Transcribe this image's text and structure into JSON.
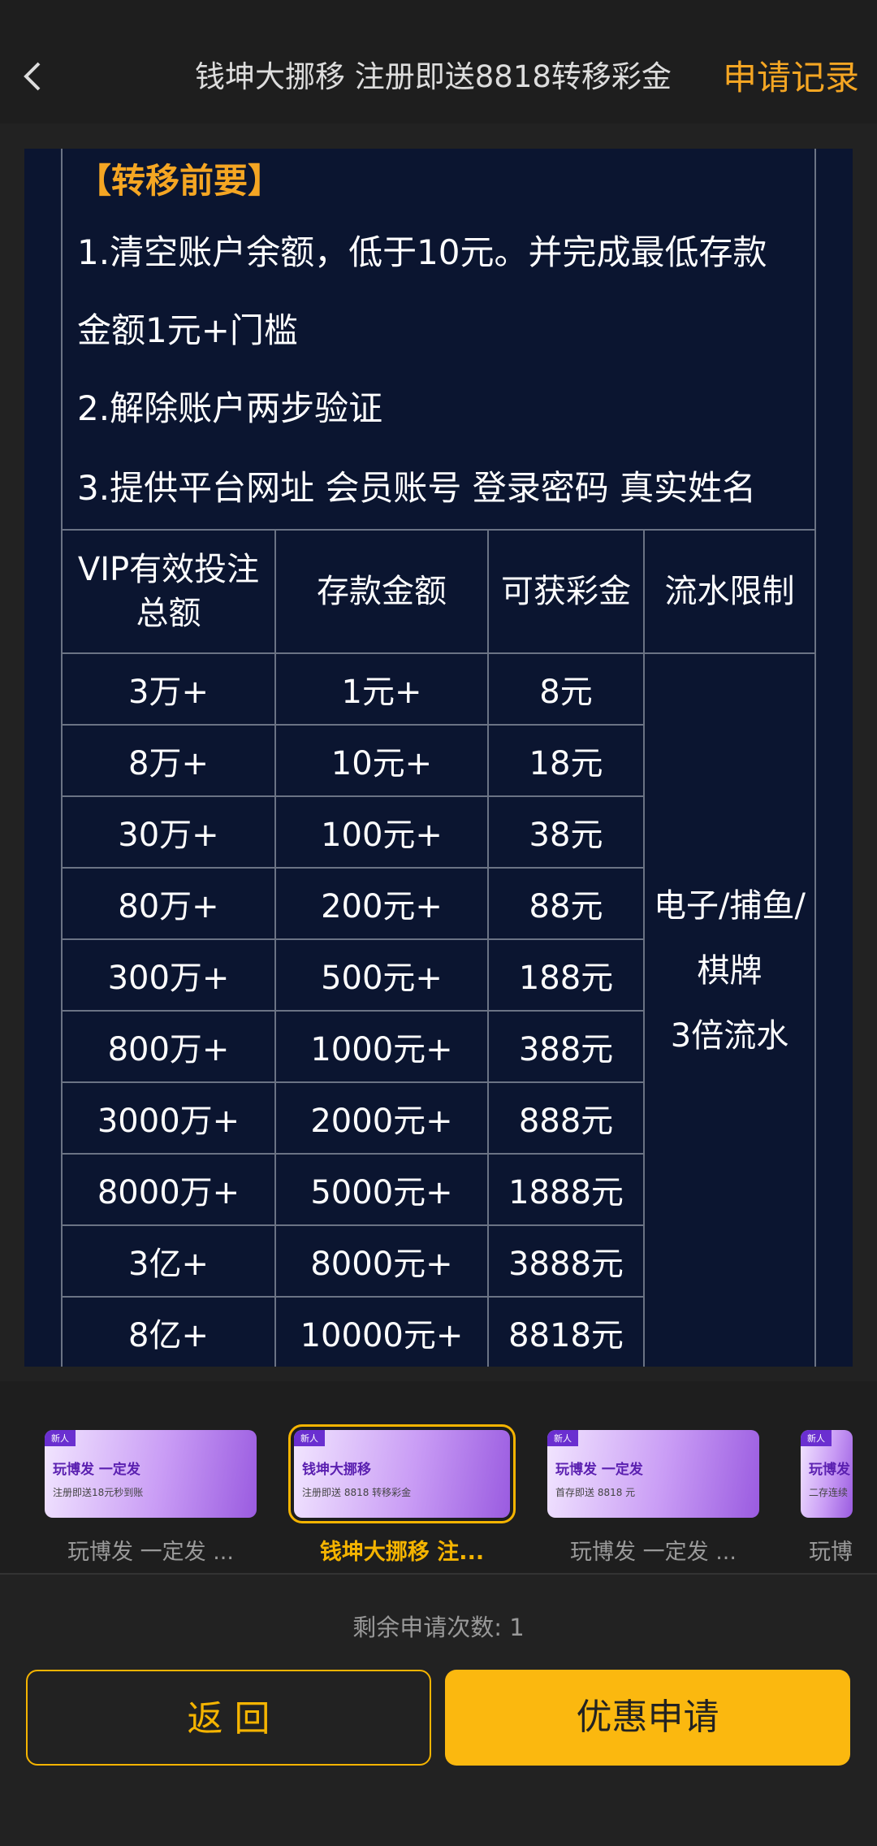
{
  "header": {
    "title": "钱坤大挪移  注册即送8818转移彩金",
    "action": "申请记录"
  },
  "content": {
    "heading": "【转移前要】",
    "items": [
      "1.清空账户余额，低于10元。并完成最低存款金额1元+门槛",
      "2.解除账户两步验证",
      "3.提供平台网址 会员账号 登录密码 真实姓名"
    ],
    "table": {
      "headers": [
        "VIP有效投注总额",
        "存款金额",
        "可获彩金",
        "流水限制"
      ],
      "rows": [
        [
          "3万+",
          "1元+",
          "8元"
        ],
        [
          "8万+",
          "10元+",
          "18元"
        ],
        [
          "30万+",
          "100元+",
          "38元"
        ],
        [
          "80万+",
          "200元+",
          "88元"
        ],
        [
          "300万+",
          "500元+",
          "188元"
        ],
        [
          "800万+",
          "1000元+",
          "388元"
        ],
        [
          "3000万+",
          "2000元+",
          "888元"
        ],
        [
          "8000万+",
          "5000元+",
          "1888元"
        ],
        [
          "3亿+",
          "8000元+",
          "3888元"
        ],
        [
          "8亿+",
          "10000元+",
          "8818元"
        ]
      ],
      "merged": [
        "电子/捕鱼/棋牌",
        "3倍流水"
      ]
    }
  },
  "carousel": [
    {
      "badge": "新人",
      "title": "玩博发 一定发",
      "sub": "注册即送18元秒到账",
      "label": "玩博发 一定发 ..."
    },
    {
      "badge": "新人",
      "title": "钱坤大挪移",
      "sub": "注册即送 8818 转移彩金",
      "label": "钱坤大挪移  注..."
    },
    {
      "badge": "新人",
      "title": "玩博发 一定发",
      "sub": "首存即送 8818 元",
      "label": "玩博发 一定发 ..."
    },
    {
      "badge": "新人",
      "title": "玩博发",
      "sub": "二存连续",
      "label": "玩博"
    }
  ],
  "footer": {
    "remaining": "剩余申请次数: 1",
    "back": "返 回",
    "apply": "优惠申请"
  }
}
